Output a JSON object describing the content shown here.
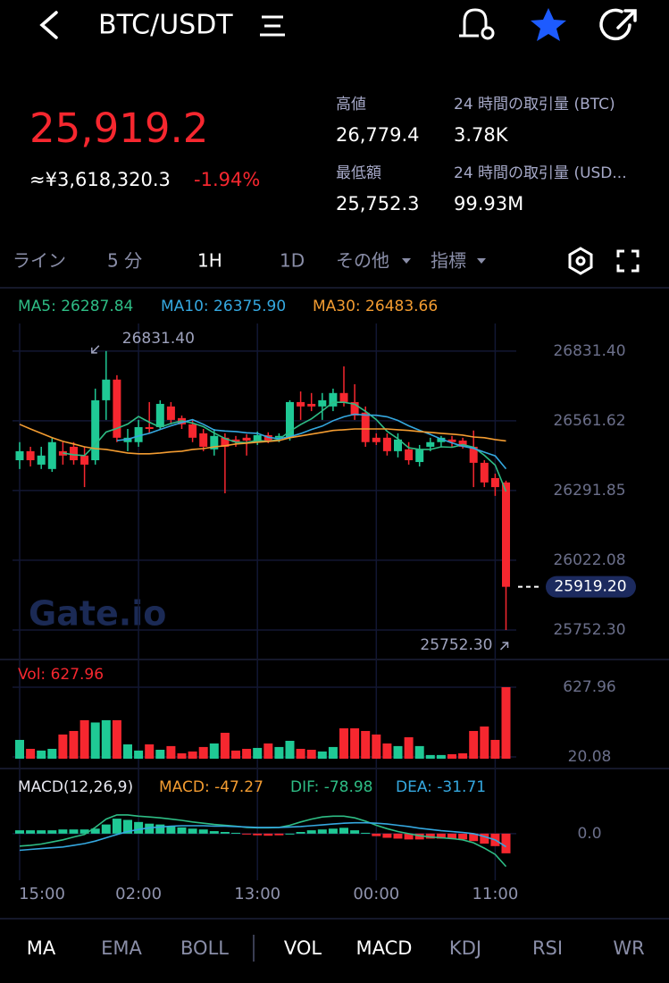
{
  "header": {
    "title": "BTC/USDT"
  },
  "summary": {
    "price": "25,919.2",
    "fiat": "≈¥3,618,320.3",
    "change": "-1.94%",
    "stats": [
      {
        "label": "高値",
        "value": "26,779.4"
      },
      {
        "label": "24 時間の取引量 (BTC)",
        "value": "3.78K"
      },
      {
        "label": "最低額",
        "value": "25,752.3"
      },
      {
        "label": "24 時間の取引量 (USD...",
        "value": "99.93M"
      }
    ]
  },
  "toolbar": {
    "tabs": [
      "ライン",
      "5 分",
      "1H",
      "1D",
      "その他",
      "指標"
    ],
    "active": 2
  },
  "watermark": "Gate.io",
  "chart_data": [
    {
      "type": "candlestick",
      "categories": [
        "15:00",
        null,
        null,
        null,
        null,
        null,
        null,
        null,
        null,
        null,
        null,
        "02:00",
        null,
        null,
        null,
        null,
        null,
        null,
        null,
        null,
        null,
        null,
        "13:00",
        null,
        null,
        null,
        null,
        null,
        null,
        null,
        null,
        null,
        null,
        "00:00",
        null,
        null,
        null,
        null,
        null,
        null,
        null,
        null,
        null,
        null,
        "11:00",
        null
      ],
      "open": [
        26409,
        26444,
        26392,
        26375,
        26444,
        26461,
        26427,
        26409,
        26641,
        26721,
        26479,
        26479,
        26537,
        26537,
        26617,
        26572,
        26548,
        26513,
        26451,
        26496,
        26489,
        26496,
        26479,
        26506,
        26496,
        26496,
        26634,
        26627,
        26617,
        26617,
        26669,
        26634,
        26593,
        26496,
        26496,
        26444,
        26451,
        26402,
        26461,
        26479,
        26489,
        26485,
        26461,
        26399,
        26340,
        26323
      ],
      "high": [
        26479,
        26461,
        26461,
        26496,
        26479,
        26479,
        26461,
        26686,
        26831.4,
        26738,
        26530,
        26565,
        26634,
        26641,
        26634,
        26582,
        26565,
        26530,
        26530,
        26513,
        26503,
        26510,
        26520,
        26517,
        26513,
        26641,
        26675,
        26669,
        26669,
        26686,
        26772,
        26703,
        26617,
        26513,
        26513,
        26513,
        26479,
        26468,
        26496,
        26503,
        26503,
        26496,
        26524,
        26409,
        26357,
        26330
      ],
      "low": [
        26375,
        26385,
        26375,
        26364,
        26392,
        26392,
        26305,
        26392,
        26565,
        26479,
        26444,
        26461,
        26513,
        26530,
        26548,
        26530,
        26479,
        26444,
        26427,
        26281,
        26461,
        26427,
        26468,
        26475,
        26479,
        26485,
        26565,
        26599,
        26565,
        26599,
        26617,
        26565,
        26461,
        26468,
        26427,
        26420,
        26392,
        26385,
        26444,
        26461,
        26461,
        26454,
        26305,
        26305,
        26271,
        25752.3
      ],
      "close": [
        26444,
        26409,
        26427,
        26479,
        26427,
        26409,
        26392,
        26641,
        26721,
        26496,
        26496,
        26537,
        26530,
        26627,
        26565,
        26548,
        26496,
        26461,
        26503,
        26461,
        26479,
        26485,
        26506,
        26485,
        26503,
        26634,
        26617,
        26617,
        26641,
        26669,
        26634,
        26582,
        26479,
        26479,
        26444,
        26489,
        26409,
        26451,
        26479,
        26496,
        26479,
        26461,
        26399,
        26323,
        26305,
        25919.2
      ],
      "up_color": "#1fc995",
      "down_color": "#f6272f",
      "ylim": [
        25638,
        26938
      ],
      "yticks": [
        {
          "value": 26831.4,
          "label": "26831.40"
        },
        26561.62,
        26291.85,
        26022.08,
        {
          "value": 25752.3,
          "label": "25752.30"
        }
      ],
      "grid": true,
      "series": [
        {
          "name": "MA5: 26287.84",
          "color": "#2ebd85",
          "values": [
            null,
            null,
            null,
            null,
            26437,
            26430,
            26427,
            26470,
            26518,
            26532,
            26549,
            26578,
            26556,
            26537,
            26551,
            26561,
            26553,
            26539,
            26514,
            26493,
            26479,
            26477,
            26486,
            26482,
            26490,
            26521,
            26547,
            26569,
            26600,
            26633,
            26633,
            26626,
            26598,
            26566,
            26521,
            26492,
            26457,
            26451,
            26451,
            26461,
            26459,
            26469,
            26459,
            26428,
            26390,
            26287.84
          ]
        },
        {
          "name": "MA10: 26375.90",
          "color": "#35a8e0",
          "values": [
            null,
            null,
            null,
            null,
            null,
            null,
            null,
            null,
            null,
            26485,
            26490,
            26503,
            26513,
            26528,
            26542,
            26555,
            26566,
            26548,
            26526,
            26522,
            26520,
            26515,
            26513,
            26498,
            26492,
            26500,
            26512,
            26528,
            26541,
            26562,
            26577,
            26587,
            26584,
            26583,
            26577,
            26563,
            26542,
            26525,
            26509,
            26491,
            26476,
            26463,
            26455,
            26440,
            26426,
            26375.9
          ]
        },
        {
          "name": "MA30: 26483.66",
          "color": "#f39c31",
          "values": [
            26548,
            26530,
            26513,
            26496,
            26482,
            26472,
            26461,
            26454,
            26451,
            26444,
            26437,
            26434,
            26434,
            26437,
            26441,
            26444,
            26451,
            26454,
            26461,
            26465,
            26472,
            26475,
            26479,
            26482,
            26485,
            26496,
            26503,
            26510,
            26517,
            26524,
            26527,
            26530,
            26530,
            26530,
            26530,
            26527,
            26524,
            26520,
            26517,
            26513,
            26510,
            26506,
            26499,
            26496,
            26489,
            26483.66
          ]
        }
      ],
      "high_label": {
        "value": 26831.4,
        "label": "26831.40"
      },
      "low_label": {
        "value": 25752.3,
        "label": "25752.30"
      },
      "last_price": {
        "value": 25919.2,
        "label": "25919.20"
      }
    },
    {
      "type": "volume",
      "title": "Vol: 627.96",
      "color": "#f6272f",
      "values": [
        168,
        90,
        75,
        90,
        215,
        246,
        340,
        320,
        340,
        340,
        129,
        75,
        129,
        82,
        114,
        51,
        67,
        106,
        137,
        230,
        75,
        90,
        98,
        137,
        106,
        160,
        90,
        82,
        67,
        106,
        269,
        269,
        246,
        215,
        137,
        114,
        191,
        114,
        36,
        36,
        43,
        51,
        246,
        285,
        168,
        627.96
      ],
      "ylim": [
        4,
        698
      ],
      "yticks": [
        627.96,
        20.08
      ],
      "grid": true
    },
    {
      "type": "macd",
      "title": "MACD(12,26,9)",
      "histogram": {
        "name": "MACD: -47.27",
        "color": "#f39c31",
        "values": [
          8,
          8,
          8,
          8,
          10,
          10,
          10,
          12,
          22,
          36,
          33,
          28,
          24,
          22,
          18,
          15,
          12,
          10,
          6,
          4,
          2,
          -2,
          -4,
          -5,
          -4,
          0,
          4,
          8,
          10,
          12,
          14,
          8,
          2,
          -6,
          -10,
          -12,
          -14,
          -14,
          -12,
          -12,
          -12,
          -14,
          -18,
          -24,
          -30,
          -47.27
        ]
      },
      "series": [
        {
          "name": "DIF: -78.98",
          "color": "#2ebd85",
          "values": [
            -30,
            -28,
            -25,
            -20,
            -15,
            -8,
            -2,
            15,
            35,
            45,
            45,
            42,
            40,
            38,
            35,
            32,
            28,
            25,
            22,
            20,
            18,
            15,
            14,
            14,
            15,
            20,
            28,
            35,
            40,
            42,
            42,
            38,
            30,
            20,
            12,
            5,
            0,
            -5,
            -8,
            -10,
            -12,
            -15,
            -22,
            -35,
            -50,
            -78.98
          ]
        },
        {
          "name": "DEA: -31.71",
          "color": "#35a8e0",
          "values": [
            -40,
            -38,
            -36,
            -34,
            -32,
            -28,
            -24,
            -18,
            -10,
            -2,
            5,
            10,
            14,
            16,
            18,
            19,
            19,
            19,
            18,
            18,
            17,
            16,
            15,
            15,
            15,
            16,
            17,
            19,
            21,
            23,
            25,
            26,
            26,
            25,
            23,
            20,
            17,
            13,
            10,
            7,
            5,
            3,
            0,
            -7,
            -15,
            -31.71
          ]
        }
      ],
      "ylim": [
        -112,
        135
      ],
      "yticks": [
        {
          "value": 0,
          "label": "0.0"
        }
      ],
      "grid": true
    }
  ],
  "indicator_tabs": {
    "items": [
      "MA",
      "EMA",
      "BOLL",
      "VOL",
      "MACD",
      "KDJ",
      "RSI",
      "WR"
    ],
    "active": [
      0,
      3,
      4
    ]
  }
}
